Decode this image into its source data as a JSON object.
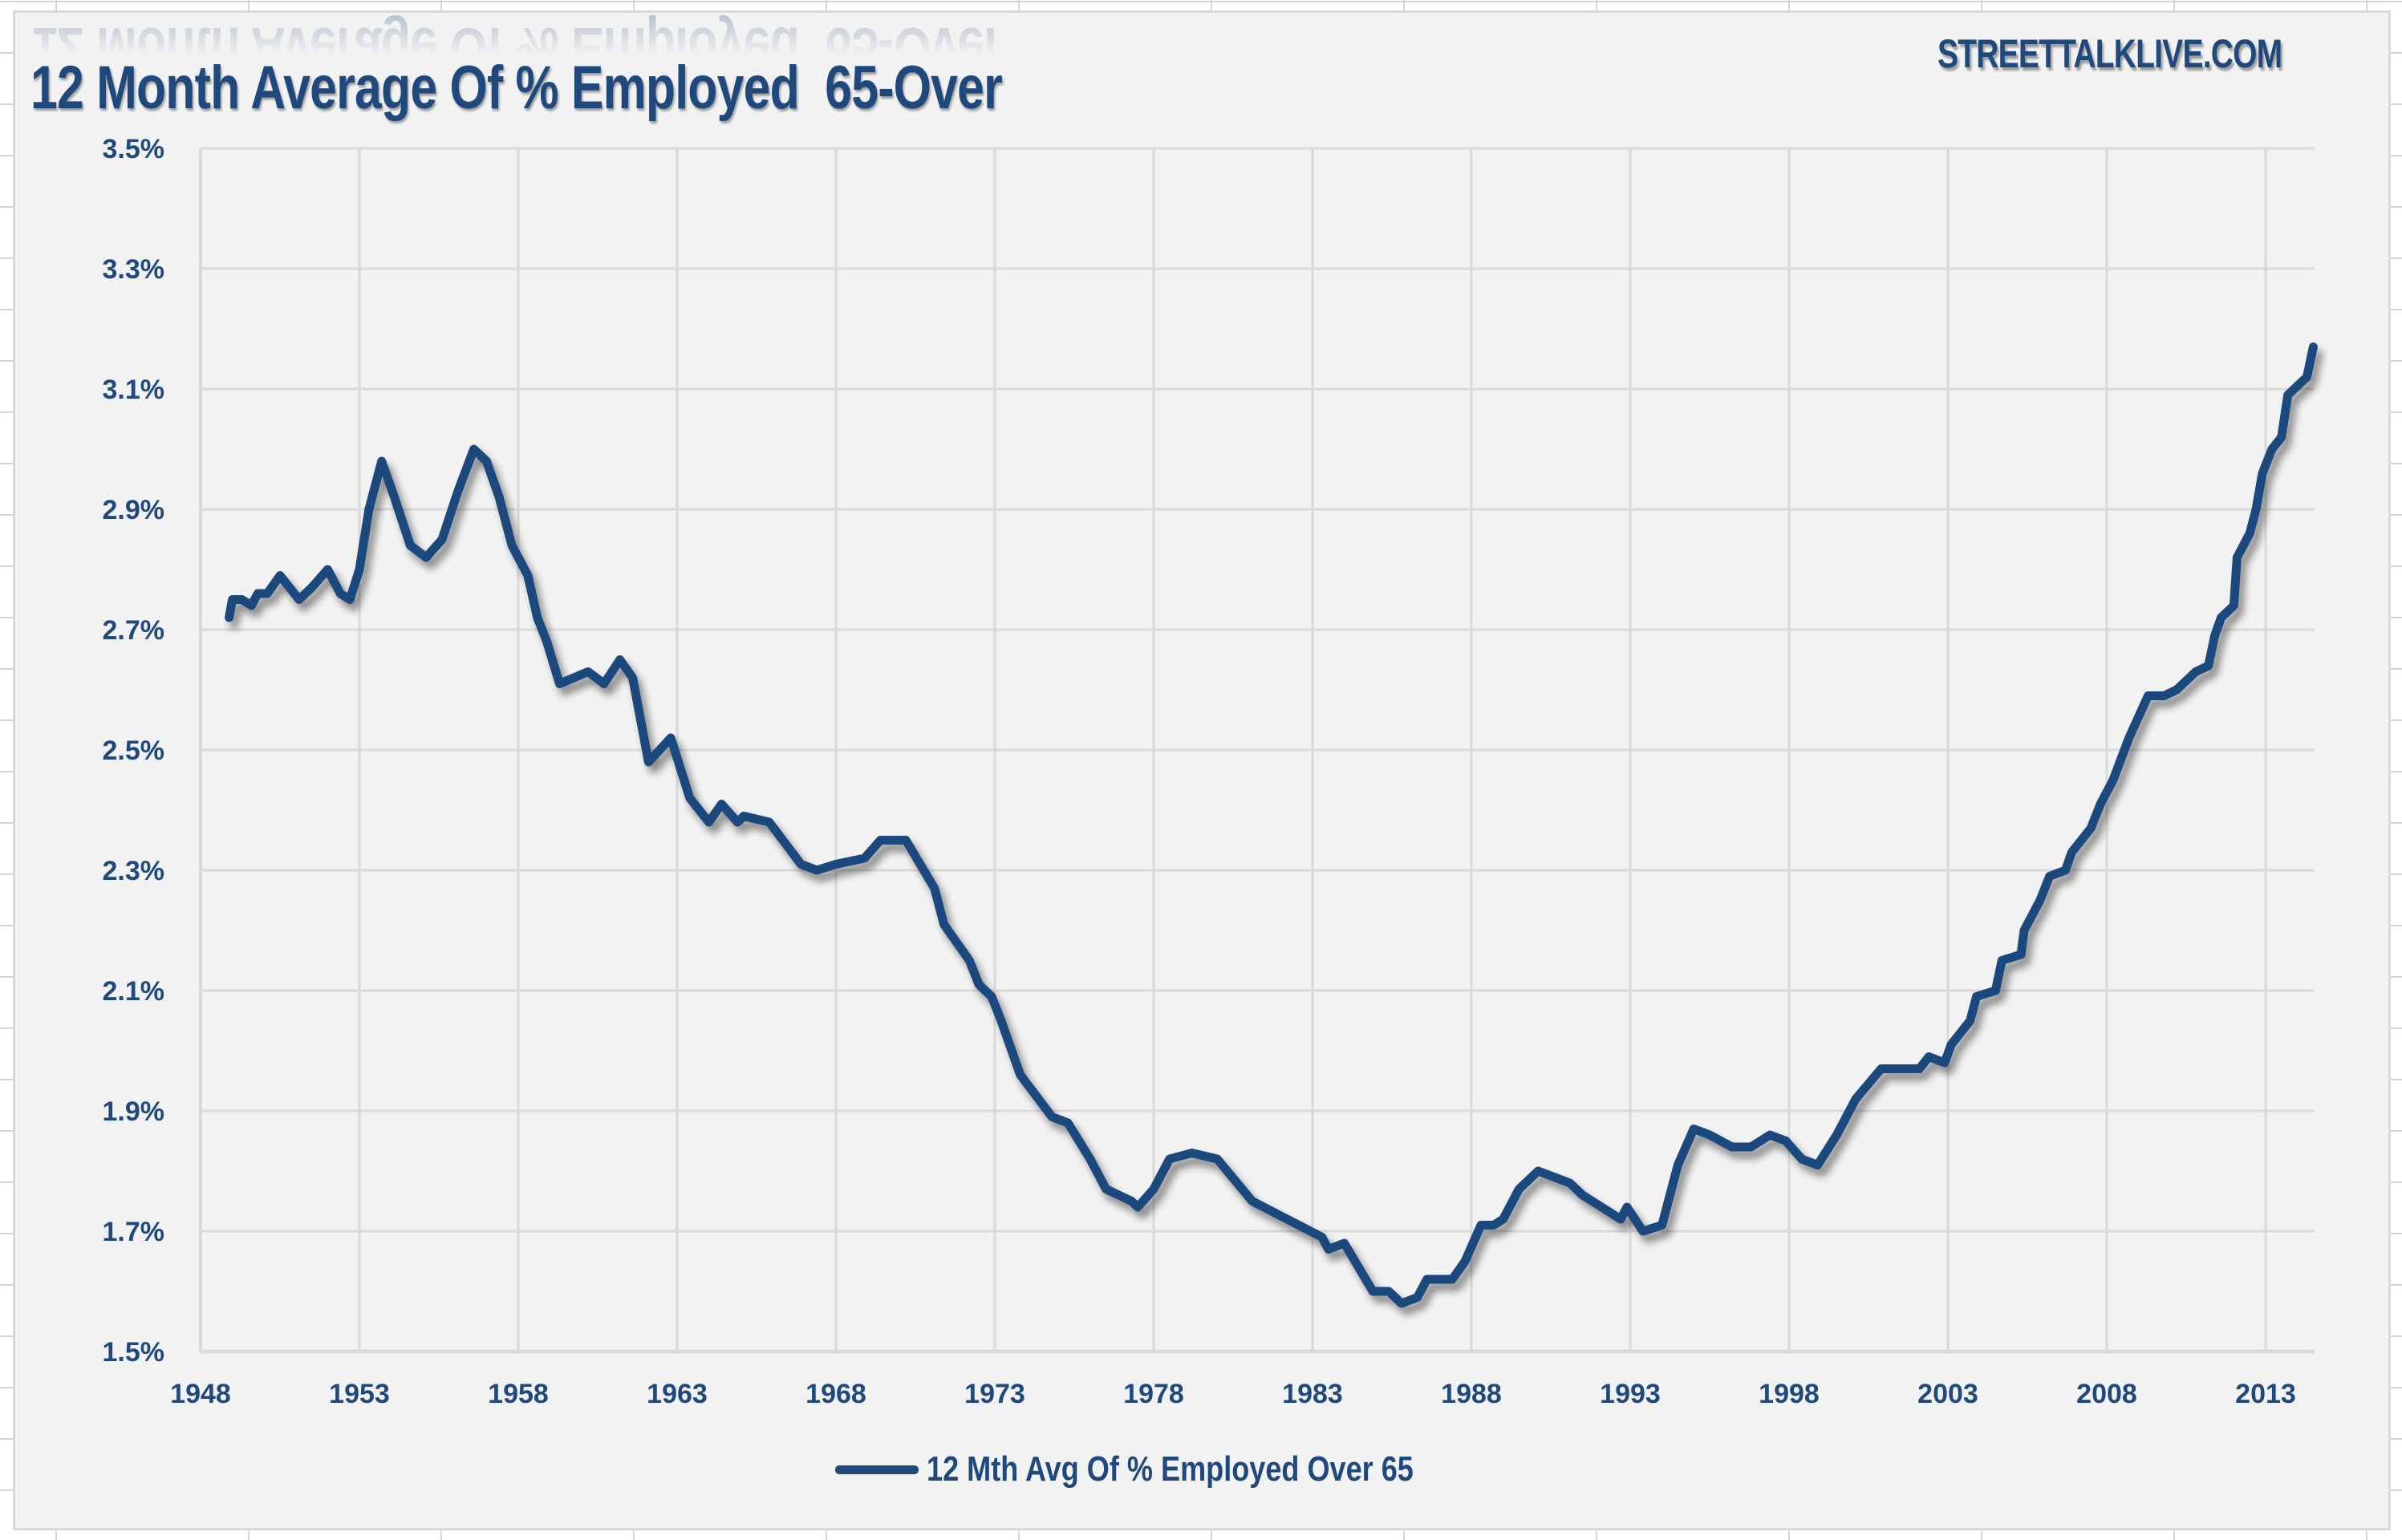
{
  "window": {
    "watermark": "STREETTALKLIVE.COM"
  },
  "colors": {
    "series": "#1f497d",
    "panel_background": "#f2f2f2",
    "gridline": "#d9d9d9",
    "text": "#1f497d"
  },
  "chart_data": {
    "type": "line",
    "title": "12 Month Average Of % Employed  65-Over",
    "xlabel": "",
    "ylabel": "",
    "xlim": [
      1948,
      2014.6
    ],
    "ylim": [
      1.5,
      3.5
    ],
    "grid": true,
    "legend_position": "bottom",
    "x_ticks": [
      1948,
      1953,
      1958,
      1963,
      1968,
      1973,
      1978,
      1983,
      1988,
      1993,
      1998,
      2003,
      2008,
      2013
    ],
    "x_tick_labels": [
      "1948",
      "1953",
      "1958",
      "1963",
      "1968",
      "1973",
      "1978",
      "1983",
      "1988",
      "1993",
      "1998",
      "2003",
      "2008",
      "2013"
    ],
    "y_ticks": [
      1.5,
      1.7,
      1.9,
      2.1,
      2.3,
      2.5,
      2.7,
      2.9,
      3.1,
      3.3,
      3.5
    ],
    "y_tick_labels": [
      "1.5%",
      "1.7%",
      "1.9%",
      "2.1%",
      "2.3%",
      "2.5%",
      "2.7%",
      "2.9%",
      "3.1%",
      "3.3%",
      "3.5%"
    ],
    "series": [
      {
        "name": "12 Mth Avg Of % Employed Over 65",
        "color": "#1f497d",
        "x": [
          1948.9,
          1949.0,
          1949.3,
          1949.6,
          1949.8,
          1950.1,
          1950.5,
          1951.1,
          1951.5,
          1952.0,
          1952.1,
          1952.4,
          1952.7,
          1953.0,
          1953.3,
          1953.7,
          1954.1,
          1954.6,
          1955.1,
          1955.6,
          1956.1,
          1956.6,
          1957.0,
          1957.4,
          1957.8,
          1958.3,
          1958.6,
          1958.9,
          1959.3,
          1960.2,
          1960.7,
          1961.2,
          1961.6,
          1962.1,
          1962.8,
          1963.4,
          1964.0,
          1964.4,
          1964.9,
          1965.1,
          1965.9,
          1966.9,
          1967.4,
          1968.0,
          1968.9,
          1969.4,
          1970.2,
          1971.1,
          1971.4,
          1972.2,
          1972.5,
          1972.9,
          1973.2,
          1973.8,
          1974.8,
          1975.3,
          1976.0,
          1976.5,
          1977.3,
          1977.5,
          1978.0,
          1978.5,
          1979.2,
          1980.0,
          1981.1,
          1982.2,
          1983.3,
          1983.5,
          1984.0,
          1984.9,
          1985.4,
          1985.8,
          1986.3,
          1986.6,
          1987.4,
          1987.8,
          1988.3,
          1988.7,
          1989.0,
          1989.5,
          1990.1,
          1991.1,
          1991.5,
          1992.1,
          1992.7,
          1992.9,
          1993.4,
          1994.0,
          1994.5,
          1995.0,
          1995.5,
          1996.2,
          1996.8,
          1997.4,
          1997.9,
          1998.4,
          1998.9,
          1999.5,
          2000.1,
          2000.9,
          2002.1,
          2002.4,
          2002.9,
          2003.1,
          2003.7,
          2003.9,
          2004.5,
          2004.7,
          2005.3,
          2005.4,
          2005.9,
          2006.2,
          2006.7,
          2006.9,
          2007.5,
          2007.8,
          2008.2,
          2008.7,
          2009.3,
          2009.8,
          2010.2,
          2010.8,
          2011.2,
          2011.4,
          2011.6,
          2012.0,
          2012.1,
          2012.5,
          2012.7,
          2012.9,
          2013.2,
          2013.5,
          2013.7,
          2013.9,
          2014.3,
          2014.5
        ],
        "values": [
          2.72,
          2.75,
          2.75,
          2.74,
          2.76,
          2.76,
          2.79,
          2.75,
          2.77,
          2.8,
          2.79,
          2.76,
          2.75,
          2.8,
          2.9,
          2.98,
          2.92,
          2.84,
          2.82,
          2.85,
          2.93,
          3.0,
          2.98,
          2.92,
          2.84,
          2.79,
          2.72,
          2.68,
          2.61,
          2.63,
          2.61,
          2.65,
          2.62,
          2.48,
          2.52,
          2.42,
          2.38,
          2.41,
          2.38,
          2.39,
          2.38,
          2.31,
          2.3,
          2.31,
          2.32,
          2.35,
          2.35,
          2.27,
          2.21,
          2.15,
          2.11,
          2.09,
          2.05,
          1.96,
          1.89,
          1.88,
          1.82,
          1.77,
          1.75,
          1.74,
          1.77,
          1.82,
          1.83,
          1.82,
          1.75,
          1.72,
          1.69,
          1.67,
          1.68,
          1.6,
          1.6,
          1.58,
          1.59,
          1.62,
          1.62,
          1.65,
          1.71,
          1.71,
          1.72,
          1.77,
          1.8,
          1.78,
          1.76,
          1.74,
          1.72,
          1.74,
          1.7,
          1.71,
          1.81,
          1.87,
          1.86,
          1.84,
          1.84,
          1.86,
          1.85,
          1.82,
          1.81,
          1.86,
          1.92,
          1.97,
          1.97,
          1.99,
          1.98,
          2.01,
          2.05,
          2.09,
          2.1,
          2.15,
          2.16,
          2.2,
          2.25,
          2.29,
          2.3,
          2.33,
          2.37,
          2.41,
          2.45,
          2.52,
          2.59,
          2.59,
          2.6,
          2.63,
          2.64,
          2.69,
          2.72,
          2.74,
          2.82,
          2.86,
          2.9,
          2.96,
          3.0,
          3.02,
          3.09,
          3.1,
          3.12,
          3.17
        ]
      }
    ]
  }
}
